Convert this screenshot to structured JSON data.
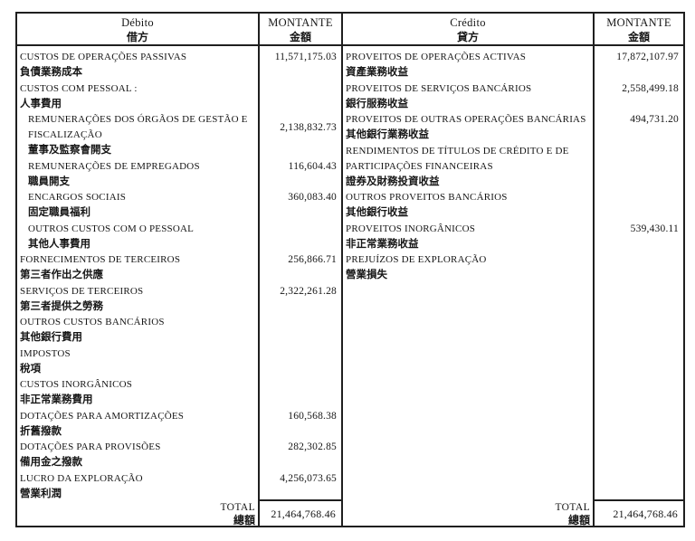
{
  "colors": {
    "ink": "#161616",
    "paper": "#ffffff",
    "border": "#1f1f1f"
  },
  "header": {
    "debit_pt": "Débito",
    "debit_zh": "借方",
    "credit_pt": "Crédito",
    "credit_zh": "貸方",
    "amount_pt": "MONTANTE",
    "amount_zh": "金額"
  },
  "debit": {
    "rows": [
      {
        "pt": "CUSTOS DE OPERAÇÕES PASSIVAS",
        "zh": "負債業務成本",
        "amount": "11,571,175.03"
      },
      {
        "pt": "CUSTOS COM PESSOAL :",
        "zh": "人事費用",
        "amount": ""
      },
      {
        "pt": "REMUNERAÇÕES DOS ÓRGÃOS DE GESTÃO E",
        "pt2": "FISCALIZAÇÃO",
        "zh": "董事及監察會開支",
        "amount": "2,138,832.73"
      },
      {
        "pt": "REMUNERAÇÕES DE EMPREGADOS",
        "zh": "職員開支",
        "amount": "116,604.43"
      },
      {
        "pt": "ENCARGOS SOCIAIS",
        "zh": "固定職員福利",
        "amount": "360,083.40"
      },
      {
        "pt": "OUTROS CUSTOS COM O PESSOAL",
        "zh": "其他人事費用",
        "amount": ""
      },
      {
        "pt": "FORNECIMENTOS DE TERCEIROS",
        "zh": "第三者作出之供應",
        "amount": "256,866.71"
      },
      {
        "pt": "SERVIÇOS DE TERCEIROS",
        "zh": "第三者提供之勞務",
        "amount": "2,322,261.28"
      },
      {
        "pt": "OUTROS CUSTOS BANCÁRIOS",
        "zh": "其他銀行費用",
        "amount": ""
      },
      {
        "pt": "IMPOSTOS",
        "zh": "稅項",
        "amount": ""
      },
      {
        "pt": "CUSTOS INORGÂNICOS",
        "zh": "非正常業務費用",
        "amount": ""
      },
      {
        "pt": "DOTAÇÕES PARA AMORTIZAÇÕES",
        "zh": "折舊撥款",
        "amount": "160,568.38"
      },
      {
        "pt": "DOTAÇÕES PARA PROVISÕES",
        "zh": "備用金之撥款",
        "amount": "282,302.85"
      },
      {
        "pt": "LUCRO DA EXPLORAÇÃO",
        "zh": "營業利潤",
        "amount": "4,256,073.65"
      }
    ],
    "total_pt": "TOTAL",
    "total_zh": "總額",
    "total_amount": "21,464,768.46"
  },
  "credit": {
    "rows": [
      {
        "pt": "PROVEITOS DE OPERAÇÕES ACTIVAS",
        "zh": "資產業務收益",
        "amount": "17,872,107.97"
      },
      {
        "pt": "PROVEITOS DE SERVIÇOS BANCÁRIOS",
        "zh": "銀行服務收益",
        "amount": "2,558,499.18"
      },
      {
        "pt": "PROVEITOS DE OUTRAS OPERAÇÕES BANCÁRIAS",
        "zh": "其他銀行業務收益",
        "amount": "494,731.20"
      },
      {
        "pt": "RENDIMENTOS DE TÍTULOS DE CRÉDITO E DE",
        "pt2": "PARTICIPAÇÕES FINANCEIRAS",
        "zh": "證券及財務投資收益",
        "amount": ""
      },
      {
        "pt": "OUTROS PROVEITOS BANCÁRIOS",
        "zh": "其他銀行收益",
        "amount": ""
      },
      {
        "pt": "PROVEITOS INORGÂNICOS",
        "zh": "非正常業務收益",
        "amount": "539,430.11"
      },
      {
        "pt": "PREJUÍZOS DE EXPLORAÇÃO",
        "zh": "營業損失",
        "amount": ""
      }
    ],
    "total_pt": "TOTAL",
    "total_zh": "總額",
    "total_amount": "21,464,768.46"
  }
}
